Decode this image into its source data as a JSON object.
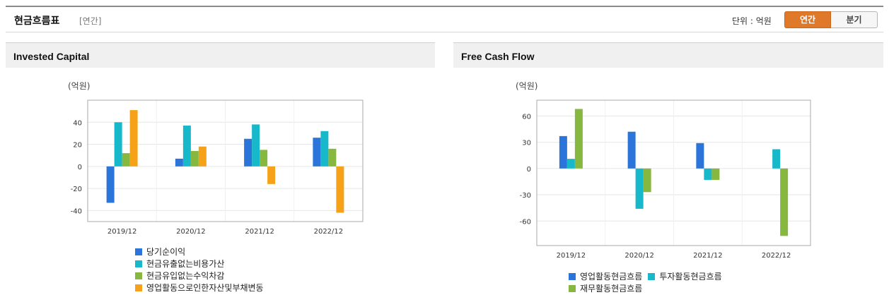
{
  "header": {
    "title": "현금흐름표",
    "subtitle": "[연간]",
    "unit_label": "단위 : 억원",
    "toggle": {
      "annual": "연간",
      "quarterly": "분기",
      "selected": "annual"
    }
  },
  "colors": {
    "blue": "#2b74d9",
    "cyan": "#17b8c9",
    "green": "#86b83f",
    "orange": "#f5a219",
    "axis": "#999999",
    "grid": "#e8e8e8"
  },
  "chart_data": [
    {
      "type": "bar",
      "title": "Invested Capital",
      "unit": "(억원)",
      "categories": [
        "2019/12",
        "2020/12",
        "2021/12",
        "2022/12"
      ],
      "ylim": [
        -50,
        60
      ],
      "yticks": [
        40,
        20,
        0,
        -20,
        -40
      ],
      "grid": true,
      "legend_position": "bottom",
      "series": [
        {
          "name": "당기순이익",
          "color": "#2b74d9",
          "values": [
            -33,
            7,
            25,
            26
          ]
        },
        {
          "name": "현금유출없는비용가산",
          "color": "#17b8c9",
          "values": [
            40,
            37,
            38,
            32
          ]
        },
        {
          "name": "현금유입없는수익차감",
          "color": "#86b83f",
          "values": [
            12,
            14,
            15,
            16
          ]
        },
        {
          "name": "영업활동으로인한자산및부채변동",
          "color": "#f5a219",
          "values": [
            51,
            18,
            -16,
            -42
          ]
        }
      ]
    },
    {
      "type": "bar",
      "title": "Free Cash Flow",
      "unit": "(억원)",
      "categories": [
        "2019/12",
        "2020/12",
        "2021/12",
        "2022/12"
      ],
      "ylim": [
        -88,
        78
      ],
      "yticks": [
        60,
        30,
        0,
        -30,
        -60
      ],
      "grid": true,
      "legend_position": "bottom",
      "series": [
        {
          "name": "영업활동현금흐름",
          "color": "#2b74d9",
          "values": [
            37,
            42,
            29,
            0
          ]
        },
        {
          "name": "투자활동현금흐름",
          "color": "#17b8c9",
          "values": [
            11,
            -46,
            -13,
            22
          ]
        },
        {
          "name": "재무활동현금흐름",
          "color": "#86b83f",
          "values": [
            68,
            -27,
            -13,
            -77
          ]
        }
      ]
    }
  ]
}
